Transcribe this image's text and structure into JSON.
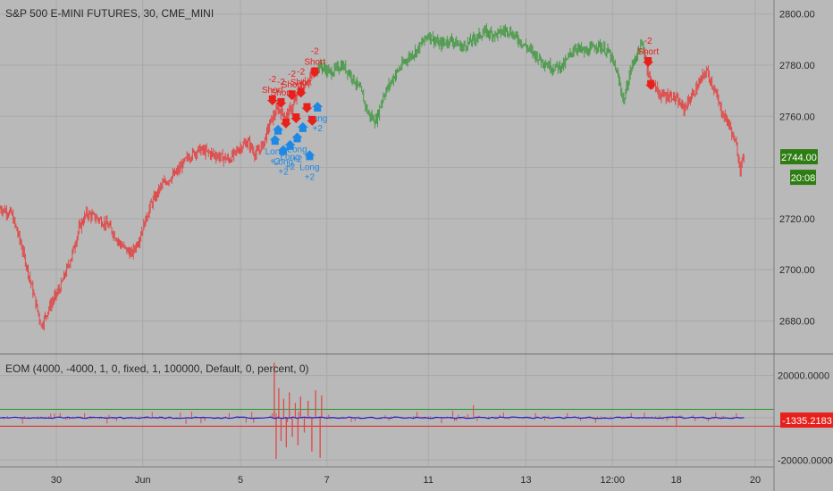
{
  "header": {
    "symbol_title": "S&P 500 E-MINI FUTURES, 30, CME_MINI",
    "indicator_title": "EOM (4000, -4000, 1, 0, fixed, 1, 100000, Default, 0, percent, 0)"
  },
  "colors": {
    "background": "#b9b9b9",
    "grid": "#a9a9a9",
    "up_candle": "#4a9a4a",
    "down_candle": "#e04848",
    "short_signal": "#e8201c",
    "long_signal": "#1e88e5",
    "eom_line": "#2323c8",
    "upper_band": "#1e9a1e",
    "lower_band": "#e02020",
    "price_tag_bg": "#2e7d12",
    "indicator_tag_bg": "#e8201c"
  },
  "chart_data": [
    {
      "type": "candlestick",
      "title": "S&P 500 E-MINI FUTURES, 30, CME_MINI",
      "x_tick_labels": [
        "30",
        "Jun",
        "5",
        "7",
        "11",
        "13",
        "12:00",
        "18",
        "20"
      ],
      "y_ticks": [
        2680,
        2700,
        2720,
        2740,
        2760,
        2780,
        2800
      ],
      "y_tick_labels": [
        "2680.00",
        "2700.00",
        "2720.00",
        "2760.00",
        "2780.00",
        "2800.00"
      ],
      "ylim": [
        2670,
        2802
      ],
      "last_price_label": "2744.00",
      "countdown_label": "20:08",
      "grid": true,
      "path_points": [
        {
          "t": 0,
          "price": 2724
        },
        {
          "t": 3,
          "price": 2722
        },
        {
          "t": 5,
          "price": 2713
        },
        {
          "t": 7,
          "price": 2702
        },
        {
          "t": 9,
          "price": 2690
        },
        {
          "t": 11,
          "price": 2678
        },
        {
          "t": 13,
          "price": 2685
        },
        {
          "t": 16,
          "price": 2693
        },
        {
          "t": 19,
          "price": 2705
        },
        {
          "t": 21,
          "price": 2716
        },
        {
          "t": 23,
          "price": 2722
        },
        {
          "t": 26,
          "price": 2720
        },
        {
          "t": 29,
          "price": 2717
        },
        {
          "t": 32,
          "price": 2710
        },
        {
          "t": 35,
          "price": 2706
        },
        {
          "t": 37,
          "price": 2712
        },
        {
          "t": 40,
          "price": 2725
        },
        {
          "t": 43,
          "price": 2733
        },
        {
          "t": 47,
          "price": 2738
        },
        {
          "t": 50,
          "price": 2744
        },
        {
          "t": 53,
          "price": 2747
        },
        {
          "t": 57,
          "price": 2745
        },
        {
          "t": 61,
          "price": 2743
        },
        {
          "t": 64,
          "price": 2748
        },
        {
          "t": 66,
          "price": 2750
        },
        {
          "t": 68,
          "price": 2745
        },
        {
          "t": 70,
          "price": 2749
        },
        {
          "t": 72,
          "price": 2758
        },
        {
          "t": 74,
          "price": 2763
        },
        {
          "t": 76,
          "price": 2760
        },
        {
          "t": 78,
          "price": 2764
        },
        {
          "t": 80,
          "price": 2772
        },
        {
          "t": 82,
          "price": 2774
        },
        {
          "t": 85,
          "price": 2780
        },
        {
          "t": 88,
          "price": 2777
        },
        {
          "t": 91,
          "price": 2780
        },
        {
          "t": 93,
          "price": 2777
        },
        {
          "t": 96,
          "price": 2770
        },
        {
          "t": 98,
          "price": 2761
        },
        {
          "t": 100,
          "price": 2758
        },
        {
          "t": 102,
          "price": 2768
        },
        {
          "t": 105,
          "price": 2776
        },
        {
          "t": 108,
          "price": 2782
        },
        {
          "t": 111,
          "price": 2786
        },
        {
          "t": 114,
          "price": 2792
        },
        {
          "t": 117,
          "price": 2788
        },
        {
          "t": 120,
          "price": 2790
        },
        {
          "t": 123,
          "price": 2787
        },
        {
          "t": 126,
          "price": 2790
        },
        {
          "t": 129,
          "price": 2793
        },
        {
          "t": 132,
          "price": 2792
        },
        {
          "t": 135,
          "price": 2794
        },
        {
          "t": 138,
          "price": 2790
        },
        {
          "t": 141,
          "price": 2786
        },
        {
          "t": 144,
          "price": 2782
        },
        {
          "t": 147,
          "price": 2779
        },
        {
          "t": 150,
          "price": 2780
        },
        {
          "t": 153,
          "price": 2787
        },
        {
          "t": 156,
          "price": 2785
        },
        {
          "t": 159,
          "price": 2788
        },
        {
          "t": 162,
          "price": 2785
        },
        {
          "t": 164,
          "price": 2778
        },
        {
          "t": 166,
          "price": 2766
        },
        {
          "t": 168,
          "price": 2779
        },
        {
          "t": 170,
          "price": 2786
        },
        {
          "t": 171,
          "price": 2788
        },
        {
          "t": 173,
          "price": 2774
        },
        {
          "t": 176,
          "price": 2768
        },
        {
          "t": 179,
          "price": 2768
        },
        {
          "t": 182,
          "price": 2763
        },
        {
          "t": 185,
          "price": 2770
        },
        {
          "t": 188,
          "price": 2778
        },
        {
          "t": 190,
          "price": 2771
        },
        {
          "t": 192,
          "price": 2762
        },
        {
          "t": 194,
          "price": 2757
        },
        {
          "t": 196,
          "price": 2748
        },
        {
          "t": 197,
          "price": 2740
        },
        {
          "t": 198,
          "price": 2744
        }
      ],
      "signals": [
        {
          "type": "short",
          "t": 72.5,
          "price": 2765,
          "label": "Short",
          "qty": "-2"
        },
        {
          "type": "short",
          "t": 74.8,
          "price": 2764,
          "label": "Short",
          "qty": "-2"
        },
        {
          "type": "short",
          "t": 77.7,
          "price": 2767,
          "label": "Short",
          "qty": "-2"
        },
        {
          "type": "short",
          "t": 80.1,
          "price": 2768,
          "label": "Short",
          "qty": "-2"
        },
        {
          "type": "short",
          "t": 81.7,
          "price": 2762,
          "label": "",
          "qty": ""
        },
        {
          "type": "short",
          "t": 83.8,
          "price": 2776,
          "label": "Short",
          "qty": "-2"
        },
        {
          "type": "short",
          "t": 172.5,
          "price": 2780,
          "label": "Short",
          "qty": "-2"
        },
        {
          "type": "long",
          "t": 73.2,
          "price": 2752,
          "label": "Long",
          "qty": "+2"
        },
        {
          "type": "long",
          "t": 75.4,
          "price": 2748,
          "label": "Long",
          "qty": "+2"
        },
        {
          "type": "long",
          "t": 77.2,
          "price": 2750,
          "label": "Long",
          "qty": "+2"
        },
        {
          "type": "long",
          "t": 79.1,
          "price": 2753,
          "label": "Long",
          "qty": "+2"
        },
        {
          "type": "long",
          "t": 82.4,
          "price": 2746,
          "label": "Long",
          "qty": "+2"
        },
        {
          "type": "long",
          "t": 84.5,
          "price": 2765,
          "label": "Long",
          "qty": "+2"
        }
      ],
      "signal_arrows_extra": [
        {
          "type": "short",
          "t": 76.1,
          "price": 2756
        },
        {
          "type": "short",
          "t": 78.8,
          "price": 2758
        },
        {
          "type": "short",
          "t": 83.1,
          "price": 2757
        },
        {
          "type": "long",
          "t": 74.0,
          "price": 2756
        },
        {
          "type": "long",
          "t": 80.6,
          "price": 2757
        },
        {
          "type": "short",
          "t": 173.2,
          "price": 2771
        }
      ]
    },
    {
      "type": "bar",
      "title": "EOM (4000, -4000, 1, 0, fixed, 1, 100000, Default, 0, percent, 0)",
      "y_ticks": [
        -20000,
        0,
        20000
      ],
      "y_tick_labels": [
        "-20000.0000",
        "20000.0000"
      ],
      "ylim": [
        -22000,
        27000
      ],
      "upper_band": 4000,
      "lower_band": -4000,
      "last_value_label": "-1335.2183",
      "last_value": -1335.2183,
      "grid": true,
      "spikes": [
        {
          "t": 73,
          "value": 26000
        },
        {
          "t": 73.5,
          "value": -19500
        },
        {
          "t": 74.2,
          "value": 14000
        },
        {
          "t": 74.8,
          "value": -11000
        },
        {
          "t": 75.5,
          "value": 9000
        },
        {
          "t": 76.2,
          "value": -14000
        },
        {
          "t": 77,
          "value": 12000
        },
        {
          "t": 77.8,
          "value": -9000
        },
        {
          "t": 78.6,
          "value": 7000
        },
        {
          "t": 79.3,
          "value": -13000
        },
        {
          "t": 80,
          "value": 10000
        },
        {
          "t": 81,
          "value": -7000
        },
        {
          "t": 82,
          "value": 8000
        },
        {
          "t": 83,
          "value": -16000
        },
        {
          "t": 84,
          "value": 13000
        },
        {
          "t": 85.2,
          "value": -19000
        },
        {
          "t": 85.6,
          "value": 10500
        }
      ]
    }
  ]
}
